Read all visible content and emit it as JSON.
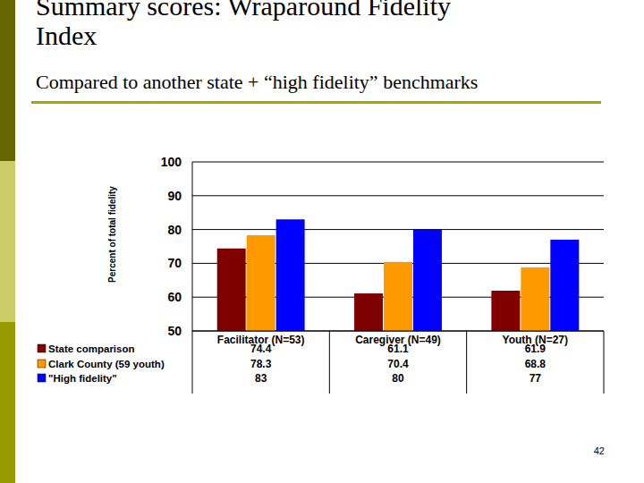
{
  "chart_data": {
    "type": "bar",
    "title": "Summary scores: Wraparound Fidelity Index",
    "subtitle": "Compared to another state + “high fidelity” benchmarks",
    "y_label": "Percent of total fidelity",
    "categories": [
      "Facilitator (N=53)",
      "Caregiver (N=49)",
      "Youth (N=27)"
    ],
    "series": [
      {
        "name": "State comparison",
        "color": "#800000",
        "values": [
          74.4,
          61.1,
          61.9
        ]
      },
      {
        "name": "Clark County (59 youth)",
        "color": "#ff9900",
        "values": [
          78.3,
          70.4,
          68.8
        ]
      },
      {
        "name": "\"High fidelity\"",
        "color": "#0000ff",
        "values": [
          83,
          80,
          77
        ]
      }
    ],
    "ylim": [
      50,
      100
    ],
    "yticks": [
      50,
      60,
      70,
      80,
      90,
      100
    ],
    "grid": true,
    "legend": "bottom-left",
    "data_labels": true
  },
  "slide": {
    "page_number": "42"
  }
}
